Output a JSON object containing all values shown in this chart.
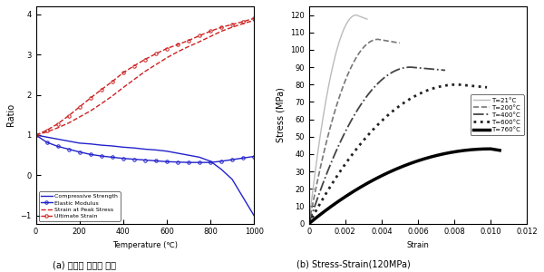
{
  "left_chart": {
    "xlabel": "Temperature (℃)",
    "ylabel": "Ratio",
    "caption": "(a) 기계적 특성의 변화",
    "ylim": [
      -1.2,
      4.2
    ],
    "xlim": [
      0,
      1000
    ],
    "yticks": [
      -1,
      0,
      1,
      2,
      3,
      4
    ],
    "xticks": [
      0,
      200,
      400,
      600,
      800,
      1000
    ],
    "compressive_strength": {
      "T": [
        0,
        50,
        100,
        150,
        200,
        250,
        300,
        350,
        400,
        450,
        500,
        550,
        600,
        650,
        700,
        750,
        800,
        850,
        900,
        950,
        1000
      ],
      "R": [
        1.0,
        0.95,
        0.9,
        0.85,
        0.8,
        0.78,
        0.75,
        0.73,
        0.7,
        0.68,
        0.65,
        0.63,
        0.6,
        0.55,
        0.5,
        0.45,
        0.35,
        0.15,
        -0.1,
        -0.55,
        -1.0
      ],
      "color": "#2222cc",
      "label": "Compressive Strength"
    },
    "elastic_modulus": {
      "T": [
        0,
        50,
        100,
        150,
        200,
        250,
        300,
        350,
        400,
        450,
        500,
        550,
        600,
        650,
        700,
        750,
        800,
        850,
        900,
        950,
        1000
      ],
      "R": [
        1.0,
        0.82,
        0.72,
        0.65,
        0.58,
        0.52,
        0.48,
        0.45,
        0.42,
        0.4,
        0.38,
        0.36,
        0.34,
        0.33,
        0.32,
        0.32,
        0.32,
        0.35,
        0.39,
        0.43,
        0.47
      ],
      "color": "#2222cc",
      "label": "Elastic Modulus"
    },
    "strain_peak": {
      "T": [
        0,
        50,
        100,
        150,
        200,
        250,
        300,
        350,
        400,
        450,
        500,
        550,
        600,
        650,
        700,
        750,
        800,
        850,
        900,
        950,
        1000
      ],
      "R": [
        1.0,
        1.08,
        1.18,
        1.3,
        1.45,
        1.6,
        1.78,
        1.97,
        2.18,
        2.38,
        2.58,
        2.75,
        2.92,
        3.07,
        3.2,
        3.32,
        3.45,
        3.58,
        3.68,
        3.77,
        3.85
      ],
      "color": "#cc2222",
      "label": "Strain at Peak Stress"
    },
    "ultimate_strain": {
      "T": [
        0,
        50,
        100,
        150,
        200,
        250,
        300,
        350,
        400,
        450,
        500,
        550,
        600,
        650,
        700,
        750,
        800,
        850,
        900,
        950,
        1000
      ],
      "R": [
        1.0,
        1.12,
        1.28,
        1.48,
        1.7,
        1.92,
        2.13,
        2.33,
        2.55,
        2.72,
        2.88,
        3.02,
        3.15,
        3.25,
        3.35,
        3.47,
        3.58,
        3.68,
        3.75,
        3.82,
        3.9
      ],
      "color": "#cc2222",
      "label": "Ultimate Strain"
    }
  },
  "right_chart": {
    "caption": "(b) Stress-Strain(120MPa)",
    "xlabel": "Strain",
    "ylabel": "Stress (MPa)",
    "ylim": [
      0,
      125
    ],
    "xlim": [
      0,
      0.012
    ],
    "yticks": [
      0,
      10,
      20,
      30,
      40,
      50,
      60,
      70,
      80,
      90,
      100,
      110,
      120
    ],
    "xticks": [
      0,
      0.002,
      0.004,
      0.006,
      0.008,
      0.01,
      0.012
    ],
    "curves": [
      {
        "label": "T=21°C",
        "color": "#bbbbbb",
        "linestyle": "-",
        "linewidth": 1.0,
        "fc": 120,
        "eps_c1": 0.0026,
        "eps_end": 0.0032
      },
      {
        "label": "T=200°C",
        "color": "#777777",
        "linestyle": "--",
        "linewidth": 1.2,
        "fc": 106,
        "eps_c1": 0.0038,
        "eps_end": 0.005
      },
      {
        "label": "T=400°C",
        "color": "#444444",
        "linestyle": "-.",
        "linewidth": 1.3,
        "fc": 90,
        "eps_c1": 0.0056,
        "eps_end": 0.0075
      },
      {
        "label": "T=600°C",
        "color": "#222222",
        "linestyle": ":",
        "linewidth": 2.0,
        "fc": 80,
        "eps_c1": 0.0082,
        "eps_end": 0.0098
      },
      {
        "label": "T=760°C",
        "color": "#000000",
        "linestyle": "-",
        "linewidth": 2.5,
        "fc": 43,
        "eps_c1": 0.01,
        "eps_end": 0.0105
      }
    ]
  }
}
